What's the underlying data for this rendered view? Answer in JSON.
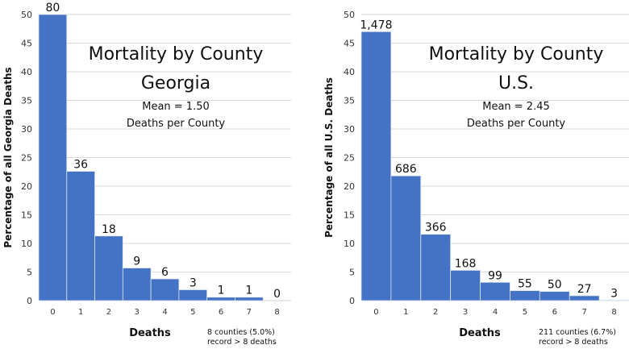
{
  "chart_data": [
    {
      "type": "bar",
      "title": "Mortality by County",
      "subtitle": "Georgia",
      "annotation_lines": [
        "Mean = 1.50",
        "Deaths per County"
      ],
      "xlabel": "Deaths",
      "ylabel": "Percentage of all Georgia Deaths",
      "ylim": [
        0,
        50
      ],
      "yticks": [
        0,
        5,
        10,
        15,
        20,
        25,
        30,
        35,
        40,
        45,
        50
      ],
      "grid": true,
      "categories": [
        "0",
        "1",
        "2",
        "3",
        "4",
        "5",
        "6",
        "7",
        "8"
      ],
      "values": [
        50.0,
        22.6,
        11.3,
        5.7,
        3.8,
        1.9,
        0.6,
        0.6,
        0.0
      ],
      "data_labels": [
        "80",
        "36",
        "18",
        "9",
        "6",
        "3",
        "1",
        "1",
        "0"
      ],
      "footnote": [
        "8 counties (5.0%)",
        "record > 8 deaths"
      ],
      "color": "#4472c4"
    },
    {
      "type": "bar",
      "title": "Mortality by County",
      "subtitle": "U.S.",
      "annotation_lines": [
        "Mean = 2.45",
        "Deaths per County"
      ],
      "xlabel": "Deaths",
      "ylabel": "Percentage of all U.S. Deaths",
      "ylim": [
        0,
        50
      ],
      "yticks": [
        0,
        5,
        10,
        15,
        20,
        25,
        30,
        35,
        40,
        45,
        50
      ],
      "grid": true,
      "categories": [
        "0",
        "1",
        "2",
        "3",
        "4",
        "5",
        "6",
        "7",
        "8"
      ],
      "values": [
        47.0,
        21.8,
        11.6,
        5.3,
        3.2,
        1.75,
        1.6,
        0.86,
        0.1
      ],
      "data_labels": [
        "1,478",
        "686",
        "366",
        "168",
        "99",
        "55",
        "50",
        "27",
        "3"
      ],
      "footnote": [
        "211 counties (6.7%)",
        "record > 8 deaths"
      ],
      "color": "#4472c4"
    }
  ]
}
